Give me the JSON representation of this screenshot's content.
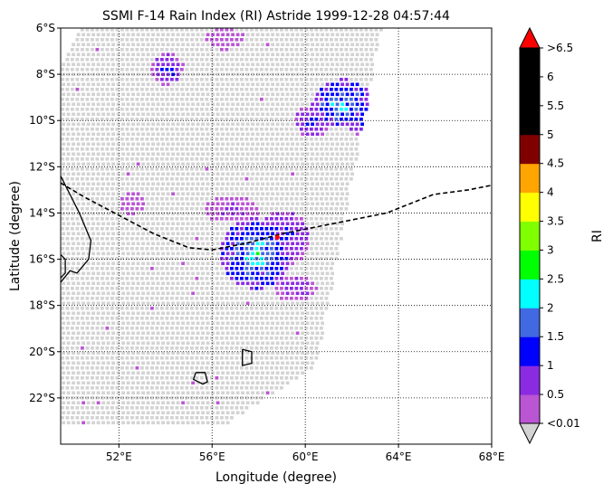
{
  "chart_data": {
    "type": "heatmap",
    "title": "SSMI F-14 Rain Index (RI) Astride 1999-12-28 04:57:44",
    "xlabel": "Longitude (degree)",
    "ylabel": "Latitude (degree)",
    "xlim": [
      49.5,
      68
    ],
    "ylim": [
      -24,
      -6
    ],
    "x_ticks": [
      {
        "value": 52,
        "label": "52°E"
      },
      {
        "value": 56,
        "label": "56°E"
      },
      {
        "value": 60,
        "label": "60°E"
      },
      {
        "value": 64,
        "label": "64°E"
      },
      {
        "value": 68,
        "label": "68°E"
      }
    ],
    "y_ticks": [
      {
        "value": -6,
        "label": "6°S"
      },
      {
        "value": -8,
        "label": "8°S"
      },
      {
        "value": -10,
        "label": "10°S"
      },
      {
        "value": -12,
        "label": "12°S"
      },
      {
        "value": -14,
        "label": "14°S"
      },
      {
        "value": -16,
        "label": "16°S"
      },
      {
        "value": -18,
        "label": "18°S"
      },
      {
        "value": -20,
        "label": "20°S"
      },
      {
        "value": -22,
        "label": "22°S"
      }
    ],
    "grid": "dotted",
    "colorbar": {
      "label": "RI",
      "under_label": "<0.01",
      "over_label": ">6.5",
      "under_color": "#d3d3d3",
      "over_color": "#ff0000",
      "tick_labels": [
        "0.5",
        "1",
        "1.5",
        "2",
        "2.5",
        "3",
        "3.5",
        "4",
        "4.5",
        "5",
        "5.5",
        "6"
      ],
      "bins": [
        {
          "from": 0.01,
          "to": 0.5,
          "color": "#ba55d3"
        },
        {
          "from": 0.5,
          "to": 1.0,
          "color": "#8a2be2"
        },
        {
          "from": 1.0,
          "to": 1.5,
          "color": "#0000ff"
        },
        {
          "from": 1.5,
          "to": 2.0,
          "color": "#4169e1"
        },
        {
          "from": 2.0,
          "to": 2.5,
          "color": "#00ffff"
        },
        {
          "from": 2.5,
          "to": 3.0,
          "color": "#00ff00"
        },
        {
          "from": 3.0,
          "to": 3.5,
          "color": "#7fff00"
        },
        {
          "from": 3.5,
          "to": 4.0,
          "color": "#ffff00"
        },
        {
          "from": 4.0,
          "to": 4.5,
          "color": "#ffa500"
        },
        {
          "from": 4.5,
          "to": 5.0,
          "color": "#800000"
        },
        {
          "from": 5.0,
          "to": 5.5,
          "color": "#000000"
        },
        {
          "from": 5.5,
          "to": 6.0,
          "color": "#000000"
        },
        {
          "from": 6.0,
          "to": 6.5,
          "color": "#000000"
        }
      ]
    },
    "swath": {
      "corners_lonlat": [
        [
          50.4,
          -6
        ],
        [
          63.3,
          -6
        ],
        [
          60.5,
          -20.6
        ],
        [
          56.5,
          -23.2
        ],
        [
          49.5,
          -23.2
        ],
        [
          49.5,
          -7.5
        ]
      ]
    },
    "rain_cells": [
      {
        "lon": 57.8,
        "lat": -15.7,
        "rx": 1.3,
        "ry": 1.3,
        "peak": 2.4
      },
      {
        "lon": 59.0,
        "lat": -15.0,
        "rx": 1.0,
        "ry": 1.0,
        "peak": 1.3
      },
      {
        "lon": 61.5,
        "lat": -9.2,
        "rx": 1.1,
        "ry": 0.9,
        "peak": 2.3
      },
      {
        "lon": 60.2,
        "lat": -10.0,
        "rx": 0.6,
        "ry": 0.6,
        "peak": 1.3
      },
      {
        "lon": 62.3,
        "lat": -9.9,
        "rx": 0.6,
        "ry": 0.6,
        "peak": 1.2
      },
      {
        "lon": 54.0,
        "lat": -7.7,
        "rx": 0.6,
        "ry": 0.6,
        "peak": 1.3
      },
      {
        "lon": 59.5,
        "lat": -17.2,
        "rx": 0.8,
        "ry": 0.5,
        "peak": 0.9
      },
      {
        "lon": 56.8,
        "lat": -13.8,
        "rx": 1.0,
        "ry": 0.5,
        "peak": 0.7
      },
      {
        "lon": 56.5,
        "lat": -6.4,
        "rx": 0.7,
        "ry": 0.4,
        "peak": 0.6
      },
      {
        "lon": 52.5,
        "lat": -13.5,
        "rx": 0.5,
        "ry": 0.5,
        "peak": 0.4
      }
    ],
    "storm_center": {
      "lon": 58.8,
      "lat": -15.05
    },
    "track": [
      [
        49.5,
        -12.7
      ],
      [
        50.5,
        -13.3
      ],
      [
        52.0,
        -14.1
      ],
      [
        53.5,
        -14.9
      ],
      [
        55.0,
        -15.5
      ],
      [
        56.0,
        -15.6
      ],
      [
        57.5,
        -15.3
      ],
      [
        59.0,
        -14.9
      ],
      [
        61.0,
        -14.5
      ],
      [
        63.5,
        -14.0
      ],
      [
        64.5,
        -13.6
      ],
      [
        65.5,
        -13.2
      ],
      [
        67.0,
        -13.0
      ],
      [
        68.0,
        -12.8
      ]
    ],
    "coastlines": [
      [
        [
          49.5,
          -12.4
        ],
        [
          49.9,
          -13.2
        ],
        [
          50.3,
          -14.0
        ],
        [
          50.8,
          -15.2
        ],
        [
          50.7,
          -16.0
        ],
        [
          50.2,
          -16.6
        ],
        [
          49.9,
          -16.5
        ],
        [
          49.5,
          -17.0
        ]
      ],
      [
        [
          49.5,
          -15.8
        ],
        [
          49.7,
          -16.0
        ],
        [
          49.7,
          -16.6
        ],
        [
          49.5,
          -16.8
        ]
      ],
      [
        [
          55.3,
          -20.9
        ],
        [
          55.7,
          -20.9
        ],
        [
          55.8,
          -21.3
        ],
        [
          55.6,
          -21.4
        ],
        [
          55.2,
          -21.2
        ],
        [
          55.3,
          -20.9
        ]
      ],
      [
        [
          57.3,
          -19.9
        ],
        [
          57.7,
          -20.0
        ],
        [
          57.7,
          -20.5
        ],
        [
          57.3,
          -20.6
        ],
        [
          57.3,
          -19.9
        ]
      ]
    ]
  }
}
